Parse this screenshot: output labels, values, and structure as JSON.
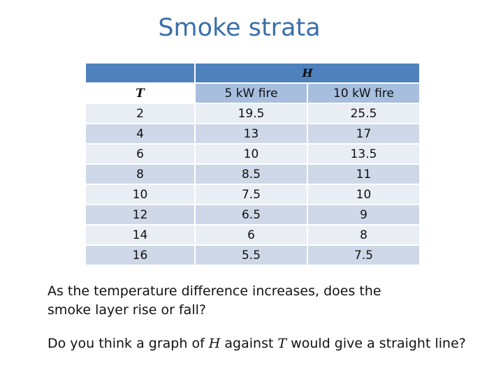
{
  "slide": {
    "title": "Smoke strata"
  },
  "table": {
    "group_header": "H",
    "row_header": "T",
    "col_headers": [
      "5 kW fire",
      "10 kW fire"
    ],
    "rows": [
      {
        "t": "2",
        "h5": "19.5",
        "h10": "25.5"
      },
      {
        "t": "4",
        "h5": "13",
        "h10": "17"
      },
      {
        "t": "6",
        "h5": "10",
        "h10": "13.5"
      },
      {
        "t": "8",
        "h5": "8.5",
        "h10": "11"
      },
      {
        "t": "10",
        "h5": "7.5",
        "h10": "10"
      },
      {
        "t": "12",
        "h5": "6.5",
        "h10": "9"
      },
      {
        "t": "14",
        "h5": "6",
        "h10": "8"
      },
      {
        "t": "16",
        "h5": "5.5",
        "h10": "7.5"
      }
    ]
  },
  "questions": {
    "q1": "As the temperature difference increases, does the smoke layer rise or fall?",
    "q2_part1": "Do you think a graph of ",
    "q2_var1": "H",
    "q2_part2": " against ",
    "q2_var2": "T",
    "q2_part3": " would give a straight line?"
  },
  "colors": {
    "title": "#3A6FA8",
    "header": "#4F81BD",
    "subheader": "#A7BEDF",
    "row_dark": "#CFD8E8",
    "row_light": "#E9EDF4"
  }
}
